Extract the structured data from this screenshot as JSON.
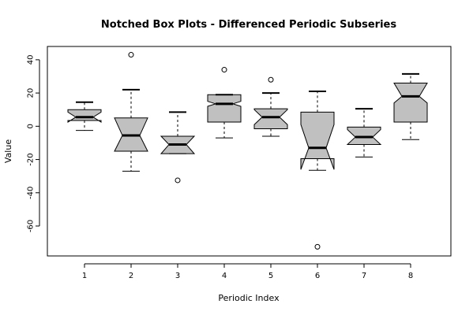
{
  "chart_data": {
    "type": "boxplot",
    "notched": true,
    "title": "Notched Box Plots - Differenced Periodic Subseries",
    "xlabel": "Periodic Index",
    "ylabel": "Value",
    "categories": [
      "1",
      "2",
      "3",
      "4",
      "5",
      "6",
      "7",
      "8"
    ],
    "ylim": [
      -78,
      48
    ],
    "yticks": [
      40,
      20,
      0,
      -20,
      -40,
      -60
    ],
    "box_fill": "#c0c0c0",
    "boxes": [
      {
        "category": "1",
        "whisker_low": -2.5,
        "q1": 3.5,
        "median": 5.5,
        "q3": 10,
        "whisker_high": 14.5,
        "notch_low": 2.5,
        "notch_high": 8.5,
        "outliers": []
      },
      {
        "category": "2",
        "whisker_low": -27,
        "q1": -15,
        "median": -5.5,
        "q3": 5,
        "whisker_high": 22,
        "notch_low": -15,
        "notch_high": 5,
        "outliers": [
          43
        ]
      },
      {
        "category": "3",
        "whisker_low": -16.5,
        "q1": -16.5,
        "median": -11,
        "q3": -6,
        "whisker_high": 8.5,
        "notch_low": -16.5,
        "notch_high": -6,
        "outliers": [
          -32.5
        ]
      },
      {
        "category": "4",
        "whisker_low": -7,
        "q1": 2.5,
        "median": 13.5,
        "q3": 19,
        "whisker_high": 19,
        "notch_low": 12,
        "notch_high": 15,
        "outliers": [
          34
        ]
      },
      {
        "category": "5",
        "whisker_low": -6,
        "q1": -1.5,
        "median": 5.5,
        "q3": 10.5,
        "whisker_high": 20,
        "notch_low": 1,
        "notch_high": 10,
        "outliers": [
          28
        ]
      },
      {
        "category": "6",
        "whisker_low": -26.5,
        "q1": -19.5,
        "median": -13,
        "q3": 8.5,
        "whisker_high": 21,
        "notch_low": -26,
        "notch_high": 1,
        "outliers": [
          -72.5
        ]
      },
      {
        "category": "7",
        "whisker_low": -18.5,
        "q1": -11,
        "median": -6.5,
        "q3": -0.5,
        "whisker_high": 10.5,
        "notch_low": -11,
        "notch_high": -2,
        "outliers": []
      },
      {
        "category": "8",
        "whisker_low": -8,
        "q1": 2.5,
        "median": 18,
        "q3": 26,
        "whisker_high": 31.5,
        "notch_low": 14,
        "notch_high": 26,
        "outliers": []
      }
    ]
  }
}
